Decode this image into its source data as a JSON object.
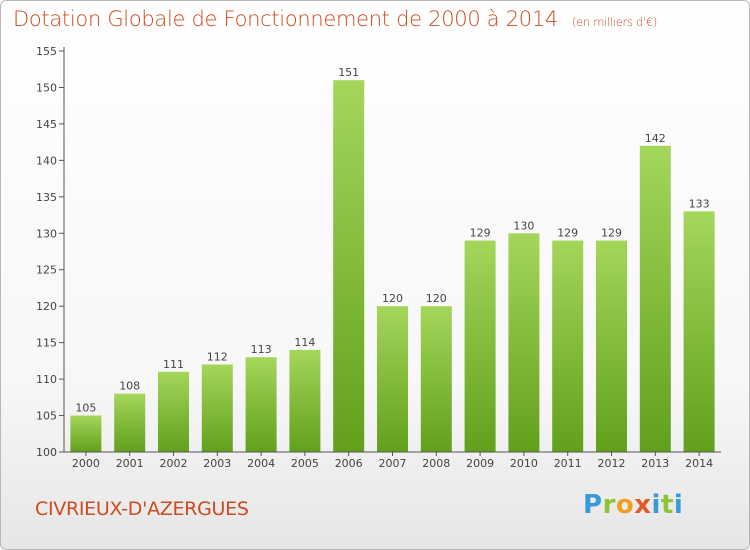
{
  "chart_data": {
    "type": "bar",
    "title": "Dotation Globale de Fonctionnement de 2000 à 2014",
    "subtitle": "(en milliers d'€)",
    "xlabel": "",
    "ylabel": "",
    "categories": [
      "2000",
      "2001",
      "2002",
      "2003",
      "2004",
      "2005",
      "2006",
      "2007",
      "2008",
      "2009",
      "2010",
      "2011",
      "2012",
      "2013",
      "2014"
    ],
    "values": [
      105,
      108,
      111,
      112,
      113,
      114,
      151,
      120,
      120,
      129,
      130,
      129,
      129,
      142,
      133
    ],
    "ylim": [
      100,
      155
    ],
    "yticks": [
      100,
      105,
      110,
      115,
      120,
      125,
      130,
      135,
      140,
      145,
      150,
      155
    ],
    "grid": false,
    "legend": "none",
    "bar_color_top": "#a4d65a",
    "bar_color_bottom": "#62a01c"
  },
  "footer": {
    "commune": "CIVRIEUX-D'AZERGUES",
    "logo_letters": [
      "P",
      "r",
      "o",
      "x",
      "i",
      "t",
      "i"
    ],
    "logo_colors": [
      "#3a9ad9",
      "#8fc43a",
      "#f0a020",
      "#e05a2a",
      "#3a9ad9",
      "#8fc43a",
      "#3a9ad9"
    ]
  },
  "colors": {
    "title": "#cc4b1f",
    "axis": "#555555"
  }
}
